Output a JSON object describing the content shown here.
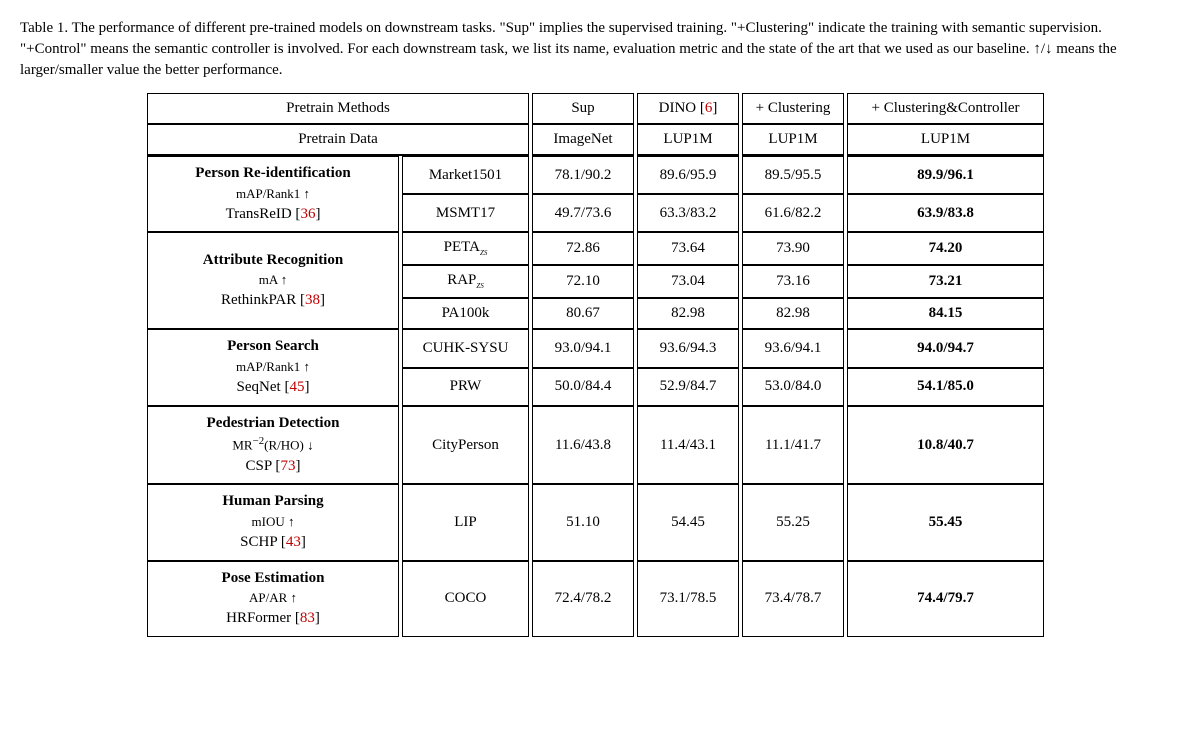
{
  "caption": {
    "prefix": "Table 1.  ",
    "body": "The performance of different pre-trained models on downstream tasks.  \"Sup\" implies the supervised training.  \"+Clustering\" indicate the training with semantic supervision. \"+Control\" means the semantic controller is involved. For each downstream task, we list its name, evaluation metric and the state of the art that we used as our baseline. ↑/↓ means the larger/smaller value the better performance."
  },
  "header": {
    "row1_label": "Pretrain Methods",
    "row2_label": "Pretrain Data",
    "cols_methods": [
      "Sup",
      "DINO [",
      "6",
      "]",
      "+ Clustering",
      "+ Clustering&Controller"
    ],
    "cols_data": [
      "ImageNet",
      "LUP1M",
      "LUP1M",
      "LUP1M"
    ]
  },
  "groups": [
    {
      "task_title": "Person Re-identification",
      "metric": "mAP/Rank1 ↑",
      "method_name": "TransReID [",
      "method_ref": "36",
      "method_tail": "]",
      "rows": [
        {
          "dataset": "Market1501",
          "cells": [
            "78.1/90.2",
            "89.6/95.9",
            "89.5/95.5",
            "89.9/96.1"
          ],
          "bold_last": true
        },
        {
          "dataset": "MSMT17",
          "cells": [
            "49.7/73.6",
            "63.3/83.2",
            "61.6/82.2",
            "63.9/83.8"
          ],
          "bold_last": true
        }
      ]
    },
    {
      "task_title": "Attribute Recognition",
      "metric": "mA ↑",
      "method_name": "RethinkPAR [",
      "method_ref": "38",
      "method_tail": "]",
      "rows": [
        {
          "dataset_html": "PETA",
          "dataset_sub": "zs",
          "cells": [
            "72.86",
            "73.64",
            "73.90",
            "74.20"
          ],
          "bold_last": true
        },
        {
          "dataset_html": "RAP",
          "dataset_sub": "zs",
          "cells": [
            "72.10",
            "73.04",
            "73.16",
            "73.21"
          ],
          "bold_last": true
        },
        {
          "dataset": "PA100k",
          "cells": [
            "80.67",
            "82.98",
            "82.98",
            "84.15"
          ],
          "bold_last": true
        }
      ]
    },
    {
      "task_title": "Person Search",
      "metric": "mAP/Rank1 ↑",
      "method_name": "SeqNet [",
      "method_ref": "45",
      "method_tail": "]",
      "rows": [
        {
          "dataset": "CUHK-SYSU",
          "cells": [
            "93.0/94.1",
            "93.6/94.3",
            "93.6/94.1",
            "94.0/94.7"
          ],
          "bold_last": true
        },
        {
          "dataset": "PRW",
          "cells": [
            "50.0/84.4",
            "52.9/84.7",
            "53.0/84.0",
            "54.1/85.0"
          ],
          "bold_last": true
        }
      ]
    },
    {
      "task_title": "Pedestrian Detection",
      "metric_html": "MR<sup>−2</sup>(R/HO) ↓",
      "method_name": "CSP [",
      "method_ref": "73",
      "method_tail": "]",
      "rows": [
        {
          "dataset": "CityPerson",
          "cells": [
            "11.6/43.8",
            "11.4/43.1",
            "11.1/41.7",
            "10.8/40.7"
          ],
          "bold_last": true
        }
      ]
    },
    {
      "task_title": "Human Parsing",
      "metric": "mIOU ↑",
      "method_name": "SCHP [",
      "method_ref": "43",
      "method_tail": "]",
      "rows": [
        {
          "dataset": "LIP",
          "cells": [
            "51.10",
            "54.45",
            "55.25",
            "55.45"
          ],
          "bold_last": true
        }
      ]
    },
    {
      "task_title": "Pose Estimation",
      "metric": "AP/AR ↑",
      "method_name": "HRFormer [",
      "method_ref": "83",
      "method_tail": "]",
      "rows": [
        {
          "dataset": "COCO",
          "cells": [
            "72.4/78.2",
            "73.1/78.5",
            "73.4/78.7",
            "74.4/79.7"
          ],
          "bold_last": true
        }
      ]
    }
  ],
  "colors": {
    "text": "#000000",
    "reference": "#c00000",
    "background": "#ffffff",
    "border": "#000000"
  },
  "fonts": {
    "caption_size_pt": 11,
    "cell_size_pt": 11,
    "task_title_weight": "bold"
  }
}
